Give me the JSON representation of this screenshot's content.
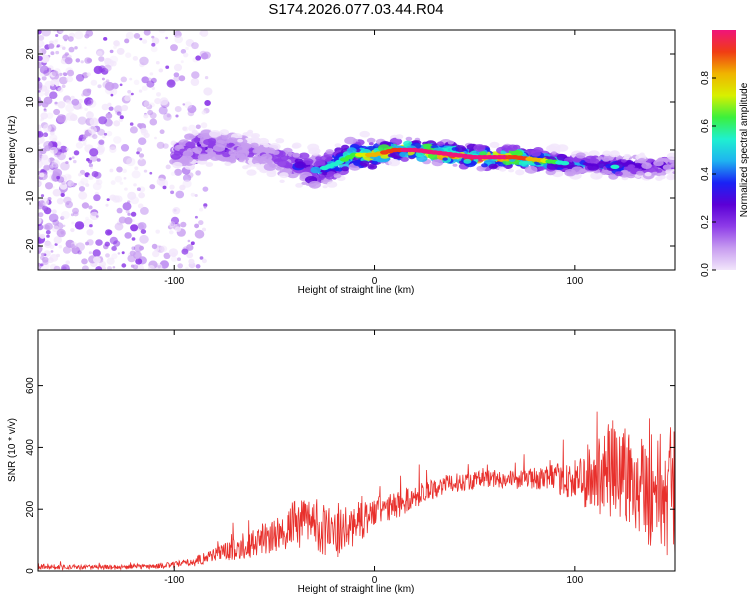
{
  "title": "S174.2026.077.03.44.R04",
  "colors": {
    "snr_line": "#e8302c",
    "colormap": [
      "#f2e6fb",
      "#c79cf0",
      "#8e3ce8",
      "#5b00d6",
      "#1a22f5",
      "#1fb3f0",
      "#1ff0d0",
      "#3cf03c",
      "#d8f000",
      "#f0b400",
      "#f03c14",
      "#f0147a"
    ]
  },
  "chart_data": [
    {
      "type": "heatmap",
      "xlabel": "Height of straight line (km)",
      "ylabel": "Frequency (Hz)",
      "xlim": [
        -168,
        150
      ],
      "ylim": [
        -25,
        25
      ],
      "x_ticks": [
        -100,
        0,
        100
      ],
      "x_tick_labels": [
        "-100",
        "0",
        "100"
      ],
      "y_ticks": [
        -20,
        -10,
        0,
        10,
        20
      ],
      "y_tick_labels": [
        "-20",
        "-10",
        "0",
        "10",
        "20"
      ],
      "grid": false,
      "ridge": {
        "x": [
          -100,
          -90,
          -80,
          -70,
          -60,
          -50,
          -40,
          -30,
          -20,
          -10,
          0,
          10,
          20,
          30,
          40,
          50,
          60,
          70,
          80,
          90,
          100,
          110,
          120,
          130,
          140,
          150
        ],
        "y": [
          -1,
          0.5,
          0.8,
          0.3,
          -0.5,
          -1.5,
          -3,
          -4.5,
          -3,
          -1,
          -1,
          0,
          0,
          -0.5,
          -1,
          -1.5,
          -1.5,
          -1.5,
          -2,
          -2.5,
          -3,
          -3,
          -3.5,
          -3.5,
          -3.5,
          -3
        ],
        "peak_amplitude": [
          0.2,
          0.3,
          0.3,
          0.25,
          0.2,
          0.2,
          0.3,
          0.45,
          0.55,
          0.65,
          0.8,
          0.9,
          0.95,
          0.95,
          0.95,
          0.95,
          0.95,
          0.9,
          0.8,
          0.6,
          0.45,
          0.4,
          0.5,
          0.35,
          0.3,
          0.3
        ]
      },
      "colorbar": {
        "label": "Normalized spectral amplitude",
        "range": [
          0,
          1
        ],
        "ticks": [
          0.0,
          0.2,
          0.4,
          0.6,
          0.8
        ],
        "tick_labels": [
          "0.0",
          "0.2",
          "0.4",
          "0.6",
          "0.8"
        ]
      }
    },
    {
      "type": "line",
      "xlabel": "Height of straight line (km)",
      "ylabel": "SNR (10 * v/v)",
      "xlim": [
        -168,
        150
      ],
      "ylim": [
        0,
        780
      ],
      "x_ticks": [
        -100,
        0,
        100
      ],
      "x_tick_labels": [
        "-100",
        "0",
        "100"
      ],
      "y_ticks": [
        0,
        200,
        400,
        600
      ],
      "y_tick_labels": [
        "0",
        "200",
        "400",
        "600"
      ],
      "grid": false,
      "series": [
        {
          "x": [
            -168,
            -150,
            -130,
            -110,
            -100,
            -90,
            -80,
            -70,
            -60,
            -50,
            -40,
            -30,
            -20,
            -10,
            0,
            10,
            20,
            30,
            40,
            50,
            60,
            70,
            80,
            90,
            100,
            110,
            120,
            130,
            140,
            150
          ],
          "y": [
            15,
            12,
            12,
            15,
            20,
            30,
            55,
            70,
            90,
            110,
            150,
            160,
            110,
            150,
            190,
            210,
            240,
            270,
            285,
            295,
            300,
            295,
            300,
            300,
            290,
            300,
            330,
            300,
            260,
            250
          ],
          "spread": [
            10,
            8,
            8,
            8,
            10,
            15,
            25,
            35,
            45,
            55,
            75,
            90,
            80,
            70,
            50,
            45,
            40,
            35,
            30,
            30,
            30,
            30,
            35,
            45,
            70,
            120,
            180,
            170,
            200,
            220
          ]
        }
      ]
    }
  ]
}
